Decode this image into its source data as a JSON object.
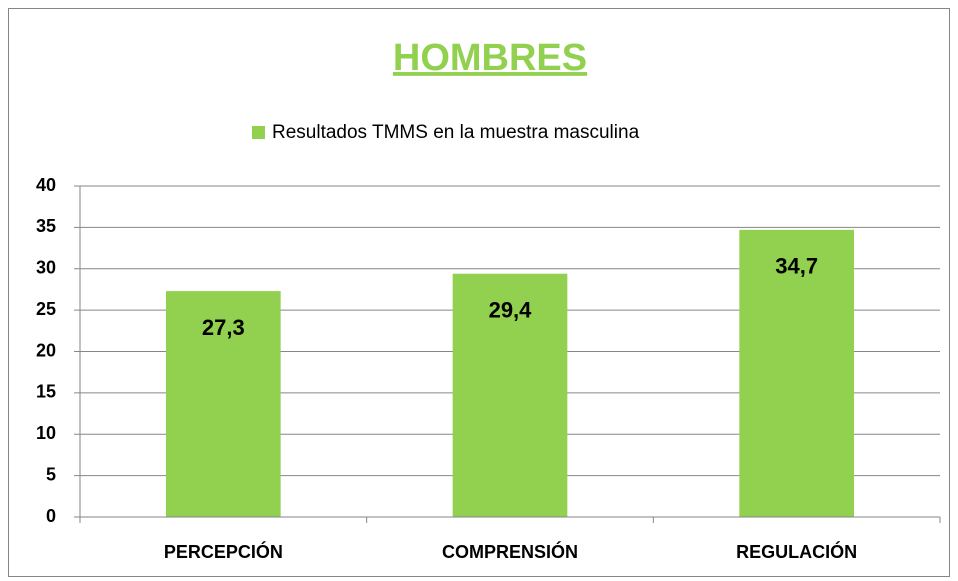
{
  "chart_data": {
    "type": "bar",
    "title": "HOMBRES",
    "title_color": "#92d050",
    "categories": [
      "PERCEPCIÓN",
      "COMPRENSIÓN",
      "REGULACIÓN"
    ],
    "series": [
      {
        "name": "Resultados TMMS en la muestra masculina",
        "color": "#92d050",
        "values": [
          27.3,
          29.4,
          34.7
        ],
        "value_labels": [
          "27,3",
          "29,4",
          "34,7"
        ]
      }
    ],
    "ylim": [
      0,
      40
    ],
    "yticks": [
      0,
      5,
      10,
      15,
      20,
      25,
      30,
      35,
      40
    ],
    "grid": true,
    "legend": "top"
  }
}
